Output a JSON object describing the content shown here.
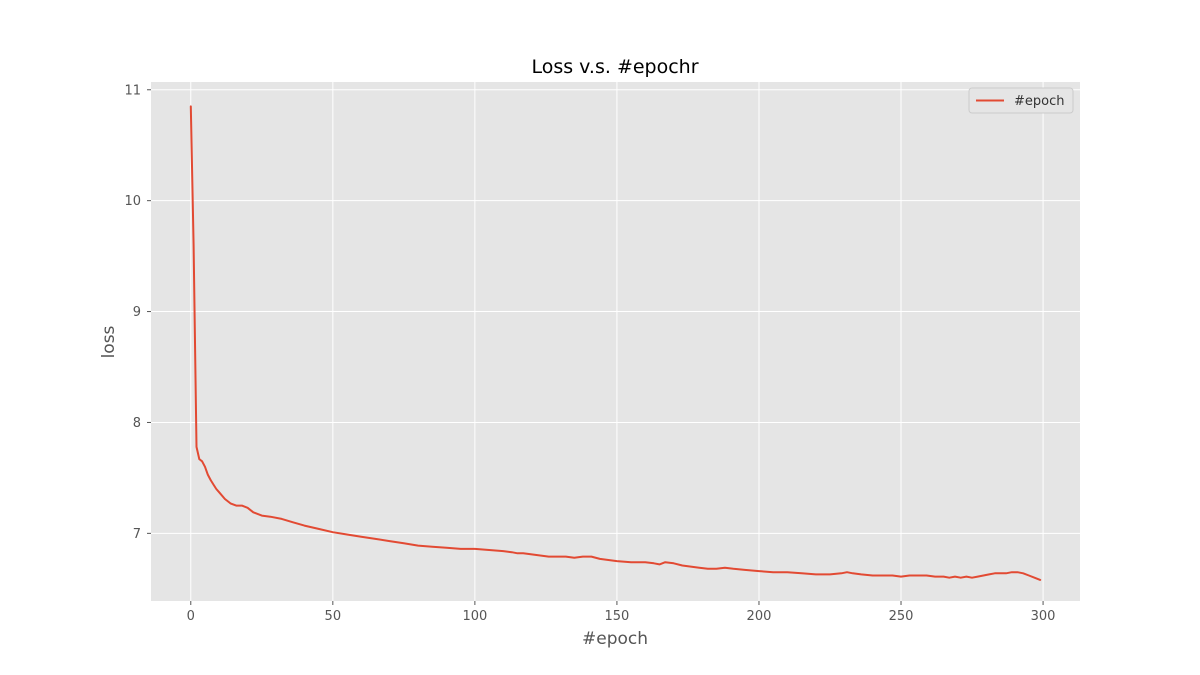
{
  "chart_data": {
    "type": "line",
    "title": "Loss v.s. #epochr",
    "xlabel": "#epoch",
    "ylabel": "loss",
    "xlim": [
      -14,
      313
    ],
    "ylim": [
      6.39,
      11.07
    ],
    "xticks": [
      0,
      50,
      100,
      150,
      200,
      250,
      300
    ],
    "yticks": [
      7,
      8,
      9,
      10,
      11
    ],
    "grid": true,
    "legend": {
      "placement": "top-right",
      "entries": [
        "#epoch"
      ]
    },
    "colors": {
      "line": "#E24A33",
      "plot_background": "#E5E5E5",
      "grid": "#FFFFFF",
      "text": "#555555"
    },
    "series": [
      {
        "name": "#epoch",
        "x": [
          0,
          1,
          2,
          3,
          4,
          5,
          6,
          7,
          8,
          9,
          10,
          12,
          14,
          16,
          18,
          20,
          22,
          25,
          28,
          32,
          36,
          40,
          45,
          50,
          55,
          60,
          65,
          70,
          75,
          80,
          85,
          90,
          95,
          100,
          105,
          110,
          113,
          115,
          117,
          120,
          123,
          126,
          129,
          132,
          135,
          138,
          141,
          144,
          147,
          150,
          155,
          160,
          163,
          165,
          167,
          170,
          173,
          176,
          179,
          182,
          185,
          188,
          191,
          195,
          200,
          205,
          210,
          215,
          220,
          225,
          229,
          231,
          233,
          236,
          240,
          243,
          247,
          250,
          253,
          256,
          259,
          262,
          265,
          267,
          269,
          271,
          273,
          275,
          277,
          279,
          281,
          283,
          285,
          287,
          289,
          291,
          293,
          295,
          297,
          299
        ],
        "y": [
          10.85,
          9.6,
          7.78,
          7.67,
          7.65,
          7.6,
          7.53,
          7.48,
          7.44,
          7.4,
          7.37,
          7.31,
          7.27,
          7.25,
          7.25,
          7.23,
          7.19,
          7.16,
          7.15,
          7.13,
          7.1,
          7.07,
          7.04,
          7.01,
          6.99,
          6.97,
          6.95,
          6.93,
          6.91,
          6.89,
          6.88,
          6.87,
          6.86,
          6.86,
          6.85,
          6.84,
          6.83,
          6.82,
          6.82,
          6.81,
          6.8,
          6.79,
          6.79,
          6.79,
          6.78,
          6.79,
          6.79,
          6.77,
          6.76,
          6.75,
          6.74,
          6.74,
          6.73,
          6.72,
          6.74,
          6.73,
          6.71,
          6.7,
          6.69,
          6.68,
          6.68,
          6.69,
          6.68,
          6.67,
          6.66,
          6.65,
          6.65,
          6.64,
          6.63,
          6.63,
          6.64,
          6.65,
          6.64,
          6.63,
          6.62,
          6.62,
          6.62,
          6.61,
          6.62,
          6.62,
          6.62,
          6.61,
          6.61,
          6.6,
          6.61,
          6.6,
          6.61,
          6.6,
          6.61,
          6.62,
          6.63,
          6.64,
          6.64,
          6.64,
          6.65,
          6.65,
          6.64,
          6.62,
          6.6,
          6.58
        ]
      }
    ]
  }
}
